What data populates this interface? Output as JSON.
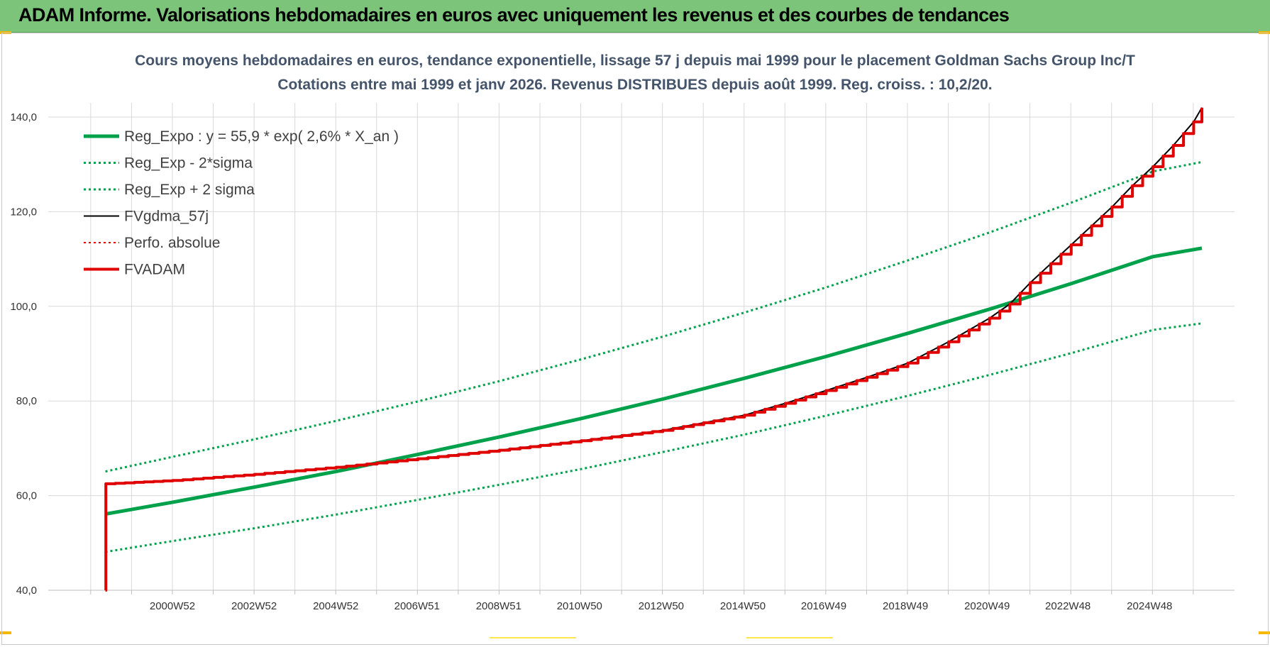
{
  "banner": {
    "title": "ADAM Informe. Valorisations hebdomadaires en euros avec uniquement les revenus et des courbes de tendances"
  },
  "colors": {
    "banner_bg": "#7cc47a",
    "green": "#00a14b",
    "red": "#e00000",
    "black": "#000000",
    "grid": "#d9d9d9"
  },
  "chart_data": {
    "type": "line",
    "title": "Cours moyens hebdomadaires en euros, tendance exponentielle, lissage 57 j depuis mai 1999 pour le placement Goldman Sachs Group Inc/T",
    "subtitle": "Cotations entre mai 1999 et janv 2026. Revenus DISTRIBUES depuis août 1999. Reg. croiss. : 10,2/20.",
    "xlabel": "",
    "ylabel": "",
    "ylim": [
      40,
      140
    ],
    "xlim": [
      1997.95,
      2027.0
    ],
    "y_ticks": [
      "40,0",
      "60,0",
      "80,0",
      "100,0",
      "120,0",
      "140,0"
    ],
    "y_tick_values": [
      40,
      60,
      80,
      100,
      120,
      140
    ],
    "x_ticks": [
      "2000W52",
      "2002W52",
      "2004W52",
      "2006W51",
      "2008W51",
      "2010W50",
      "2012W50",
      "2014W50",
      "2016W49",
      "2018W49",
      "2020W49",
      "2022W48",
      "2024W48"
    ],
    "x_tick_years": [
      2000.99,
      2002.99,
      2004.99,
      2006.98,
      2008.98,
      2010.96,
      2012.96,
      2014.96,
      2016.94,
      2018.94,
      2020.94,
      2022.92,
      2024.92
    ],
    "grid": true,
    "legend_position": "top-left",
    "series": [
      {
        "name": "Reg_Expo : y = 55,9 * exp( 2,6% *  X_an )",
        "style": "solid",
        "color": "#00a14b",
        "width": 5,
        "x": [
          1999.35,
          2001.0,
          2003.0,
          2005.0,
          2007.0,
          2009.0,
          2011.0,
          2013.0,
          2015.0,
          2017.0,
          2019.0,
          2021.0,
          2023.0,
          2025.0,
          2026.2
        ],
        "y": [
          56.1,
          58.6,
          61.8,
          65.1,
          68.7,
          72.4,
          76.3,
          80.4,
          84.8,
          89.4,
          94.3,
          99.4,
          104.8,
          110.5,
          112.3
        ]
      },
      {
        "name": "Reg_Exp - 2*sigma",
        "style": "dotted",
        "color": "#00a14b",
        "width": 3,
        "x": [
          1999.35,
          2001.0,
          2003.0,
          2005.0,
          2007.0,
          2009.0,
          2011.0,
          2013.0,
          2015.0,
          2017.0,
          2019.0,
          2021.0,
          2023.0,
          2025.0,
          2026.2
        ],
        "y": [
          48.1,
          50.4,
          53.1,
          56.0,
          59.1,
          62.3,
          65.6,
          69.2,
          72.9,
          76.9,
          81.1,
          85.5,
          90.1,
          95.0,
          96.4
        ]
      },
      {
        "name": "Reg_Exp + 2 sigma",
        "style": "dotted",
        "color": "#00a14b",
        "width": 3,
        "x": [
          1999.35,
          2001.0,
          2003.0,
          2005.0,
          2007.0,
          2009.0,
          2011.0,
          2013.0,
          2015.0,
          2017.0,
          2019.0,
          2021.0,
          2023.0,
          2025.0,
          2026.2
        ],
        "y": [
          65.1,
          68.2,
          71.9,
          75.8,
          79.9,
          84.2,
          88.8,
          93.6,
          98.7,
          104.0,
          109.7,
          115.6,
          121.9,
          128.5,
          130.5
        ]
      },
      {
        "name": "FVgdma_57j",
        "style": "solid",
        "color": "#000000",
        "width": 2,
        "x": [
          1999.35,
          1999.36,
          2001.0,
          2003.0,
          2005.0,
          2007.0,
          2009.0,
          2011.0,
          2013.0,
          2015.0,
          2016.0,
          2017.0,
          2018.0,
          2019.0,
          2020.0,
          2021.0,
          2021.5,
          2022.0,
          2023.0,
          2024.0,
          2024.5,
          2025.0,
          2025.5,
          2026.0,
          2026.2
        ],
        "y": [
          40.0,
          62.5,
          63.2,
          64.5,
          66.0,
          67.8,
          69.6,
          71.6,
          73.8,
          77.0,
          79.5,
          82.2,
          85.0,
          88.0,
          92.5,
          97.5,
          100.5,
          105.0,
          113.0,
          121.0,
          125.5,
          129.5,
          134.0,
          139.0,
          142.0
        ]
      },
      {
        "name": "Perfo. absolue",
        "style": "dotted",
        "color": "#e00000",
        "width": 2,
        "x": [],
        "y": []
      },
      {
        "name": "FVADAM",
        "style": "step",
        "color": "#e00000",
        "width": 4,
        "x": [
          1999.35,
          1999.36,
          2001.0,
          2003.0,
          2005.0,
          2007.0,
          2009.0,
          2011.0,
          2013.0,
          2015.0,
          2016.0,
          2017.0,
          2018.0,
          2019.0,
          2020.0,
          2021.0,
          2021.5,
          2022.0,
          2023.0,
          2024.0,
          2024.5,
          2025.0,
          2025.5,
          2026.0,
          2026.2
        ],
        "y": [
          40.0,
          62.5,
          63.2,
          64.5,
          66.0,
          67.8,
          69.6,
          71.6,
          73.8,
          77.0,
          79.5,
          82.2,
          85.0,
          88.0,
          92.5,
          97.5,
          100.5,
          105.0,
          113.0,
          121.0,
          125.5,
          129.5,
          134.0,
          139.0,
          142.0
        ]
      }
    ]
  }
}
